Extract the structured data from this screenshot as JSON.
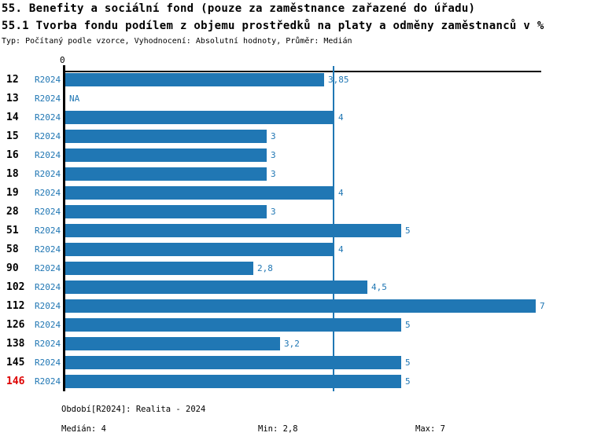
{
  "title": "55. Benefity a sociální fond (pouze za zaměstnance zařazené do úřadu)",
  "subtitle": "55.1 Tvorba fondu podílem z objemu prostředků na platy a odměny zaměstnanců v %",
  "meta": "Typ: Počítaný podle vzorce, Vyhodnocení: Absolutní hodnoty, Průměr: Medián",
  "axis": {
    "zero_label": "0"
  },
  "chart_data": {
    "type": "bar",
    "orientation": "horizontal",
    "title": "55.1 Tvorba fondu podílem z objemu prostředků na platy a odměny zaměstnanců v %",
    "series_name": "R2024",
    "categories": [
      "12",
      "13",
      "14",
      "15",
      "16",
      "18",
      "19",
      "28",
      "51",
      "58",
      "90",
      "102",
      "112",
      "126",
      "138",
      "145",
      "146"
    ],
    "values": [
      3.85,
      null,
      4,
      3,
      3,
      3,
      4,
      3,
      5,
      4,
      2.8,
      4.5,
      7,
      5,
      3.2,
      5,
      5
    ],
    "rows": [
      {
        "id": "12",
        "period": "R2024",
        "value": 3.85,
        "label": "3,85"
      },
      {
        "id": "13",
        "period": "R2024",
        "value": null,
        "label": "NA"
      },
      {
        "id": "14",
        "period": "R2024",
        "value": 4,
        "label": "4"
      },
      {
        "id": "15",
        "period": "R2024",
        "value": 3,
        "label": "3"
      },
      {
        "id": "16",
        "period": "R2024",
        "value": 3,
        "label": "3"
      },
      {
        "id": "18",
        "period": "R2024",
        "value": 3,
        "label": "3"
      },
      {
        "id": "19",
        "period": "R2024",
        "value": 4,
        "label": "4"
      },
      {
        "id": "28",
        "period": "R2024",
        "value": 3,
        "label": "3"
      },
      {
        "id": "51",
        "period": "R2024",
        "value": 5,
        "label": "5"
      },
      {
        "id": "58",
        "period": "R2024",
        "value": 4,
        "label": "4"
      },
      {
        "id": "90",
        "period": "R2024",
        "value": 2.8,
        "label": "2,8"
      },
      {
        "id": "102",
        "period": "R2024",
        "value": 4.5,
        "label": "4,5"
      },
      {
        "id": "112",
        "period": "R2024",
        "value": 7,
        "label": "7"
      },
      {
        "id": "126",
        "period": "R2024",
        "value": 5,
        "label": "5"
      },
      {
        "id": "138",
        "period": "R2024",
        "value": 3.2,
        "label": "3,2"
      },
      {
        "id": "145",
        "period": "R2024",
        "value": 5,
        "label": "5"
      },
      {
        "id": "146",
        "period": "R2024",
        "value": 5,
        "label": "5"
      }
    ],
    "median_line_value": 4,
    "xlim": [
      0,
      7
    ],
    "highlight_row_id": "146",
    "colors": {
      "bar": "#2077B4",
      "label_blue": "#2077B4",
      "median_line": "#2077B4",
      "highlight_red": "#DD0000",
      "axis_black": "#000000"
    }
  },
  "footer": {
    "period_line": "Období[R2024]: Realita - 2024",
    "median": "Medián: 4",
    "min": "Min: 2,8",
    "max": "Max: 7"
  }
}
